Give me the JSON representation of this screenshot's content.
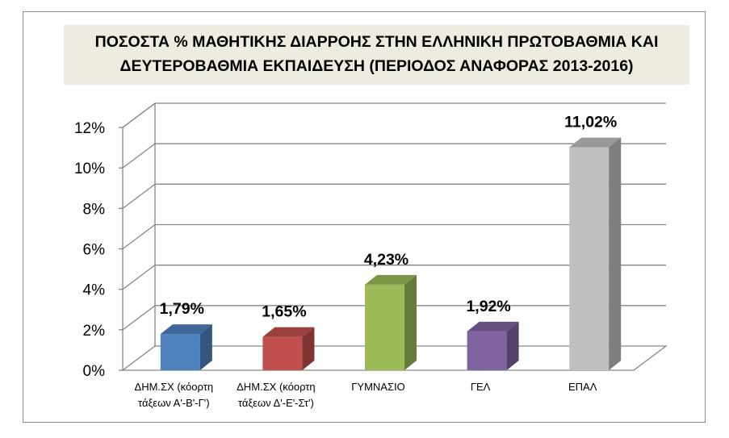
{
  "chart_data": {
    "type": "bar",
    "title_lines": [
      "ΠΟΣΟΣΤΑ % ΜΑΘΗΤΙΚΗΣ ΔΙΑΡΡΟΗΣ ΣΤΗΝ ΕΛΛΗΝΙΚΗ ΠΡΩΤΟΒΑΘΜΙΑ ΚΑΙ",
      "ΔΕΥΤΕΡΟΒΑΘΜΙΑ ΕΚΠΑΙΔΕΥΣΗ (ΠΕΡΙΟΔΟΣ ΑΝΑΦΟΡΑΣ 2013-2016)"
    ],
    "categories": [
      [
        "ΔΗΜ.ΣΧ (κόορτη",
        "τάξεων Α'-Β'-Γ')"
      ],
      [
        "ΔΗΜ.ΣΧ (κόορτη",
        "τάξεων Δ'-Ε'-Στ')"
      ],
      [
        "ΓΥΜΝΑΣΙΟ"
      ],
      [
        "ΓΕΛ"
      ],
      [
        "ΕΠΑΛ"
      ]
    ],
    "values": [
      1.79,
      1.65,
      4.23,
      1.92,
      11.02
    ],
    "data_labels": [
      "1,79%",
      "1,65%",
      "4,23%",
      "1,92%",
      "11,02%"
    ],
    "colors": [
      "#4f81bd",
      "#c0504d",
      "#9bbb59",
      "#8064a2",
      "#bfbfbf"
    ],
    "yticks": [
      "0%",
      "2%",
      "4%",
      "6%",
      "8%",
      "10%",
      "12%"
    ],
    "ylim": [
      0,
      12
    ],
    "grid": true,
    "legend": "none",
    "three_d": true
  }
}
